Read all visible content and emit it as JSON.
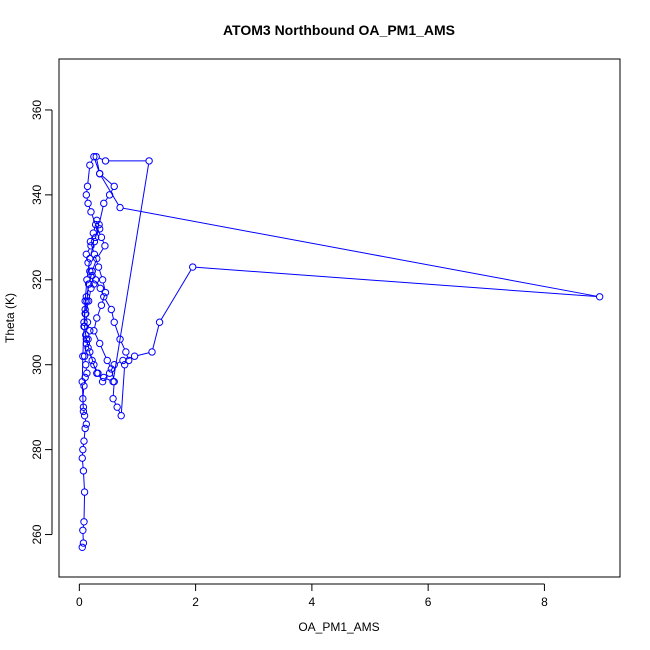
{
  "chart_data": {
    "type": "scatter",
    "title": "ATOM3 Northbound OA_PM1_AMS",
    "xlabel": "OA_PM1_AMS",
    "ylabel": "Theta (K)",
    "xlim": [
      -0.35,
      9.3
    ],
    "ylim": [
      250,
      372
    ],
    "xticks": [
      0,
      2,
      4,
      6,
      8
    ],
    "yticks": [
      260,
      280,
      300,
      320,
      340,
      360
    ],
    "grid": false,
    "legend": "none",
    "color": "#0000ff",
    "markers": "open-circle",
    "connected": true,
    "series": [
      {
        "x": [
          0.05,
          0.07,
          0.06,
          0.08,
          0.09,
          0.07,
          0.05,
          0.06,
          0.08,
          0.1,
          0.12,
          0.09,
          0.07,
          0.06,
          0.08,
          0.1,
          0.13,
          0.11,
          0.09,
          0.12,
          0.15,
          0.18,
          0.14,
          0.11,
          0.16,
          0.2,
          0.25,
          0.22,
          0.18,
          0.15,
          0.12,
          0.2,
          0.28,
          0.35,
          0.3,
          0.24,
          0.19,
          0.26,
          0.33,
          0.4,
          0.45,
          0.38,
          0.3,
          0.25,
          0.35,
          0.48,
          0.55,
          0.6,
          0.58,
          0.65,
          0.72,
          0.78,
          0.85,
          0.8,
          0.7,
          0.6,
          0.55,
          0.42,
          0.36,
          0.28,
          0.22,
          0.16,
          0.13,
          0.1,
          0.09,
          0.12,
          0.18,
          0.25,
          0.32,
          0.4,
          0.52,
          0.6,
          0.75,
          0.95,
          1.25,
          1.38,
          1.95,
          8.95,
          0.7,
          0.35,
          0.25,
          0.18,
          0.14,
          0.12,
          0.15,
          0.2,
          0.28,
          0.38,
          0.44,
          0.3,
          0.22,
          0.17,
          0.12,
          0.1,
          0.08,
          0.11,
          0.15,
          0.22,
          0.3,
          0.42,
          0.58,
          1.2,
          0.45,
          0.29,
          0.35,
          0.6,
          0.52,
          0.42,
          0.34,
          0.26,
          0.18,
          0.13,
          0.1,
          0.08,
          0.06,
          0.05,
          0.07
        ],
        "y": [
          257,
          258,
          261,
          263,
          270,
          275,
          278,
          280,
          282,
          285,
          286,
          288,
          290,
          292,
          295,
          297,
          298,
          300,
          302,
          305,
          306,
          308,
          310,
          312,
          315,
          318,
          319,
          321,
          322,
          324,
          326,
          328,
          330,
          332,
          334,
          331,
          329,
          326,
          323,
          320,
          317,
          314,
          311,
          308,
          305,
          301,
          299,
          296,
          292,
          290,
          288,
          300,
          301,
          303,
          306,
          310,
          313,
          316,
          318,
          320,
          322,
          319,
          315,
          312,
          309,
          306,
          303,
          300,
          298,
          296,
          298,
          300,
          301,
          302,
          303,
          310,
          323,
          316,
          337,
          345,
          349,
          347,
          342,
          340,
          338,
          336,
          333,
          330,
          328,
          325,
          322,
          319,
          316,
          313,
          310,
          307,
          304,
          301,
          298,
          297,
          296,
          348,
          348,
          349,
          345,
          342,
          340,
          338,
          333,
          329,
          325,
          320,
          315,
          309,
          302,
          296,
          289
        ]
      }
    ]
  }
}
